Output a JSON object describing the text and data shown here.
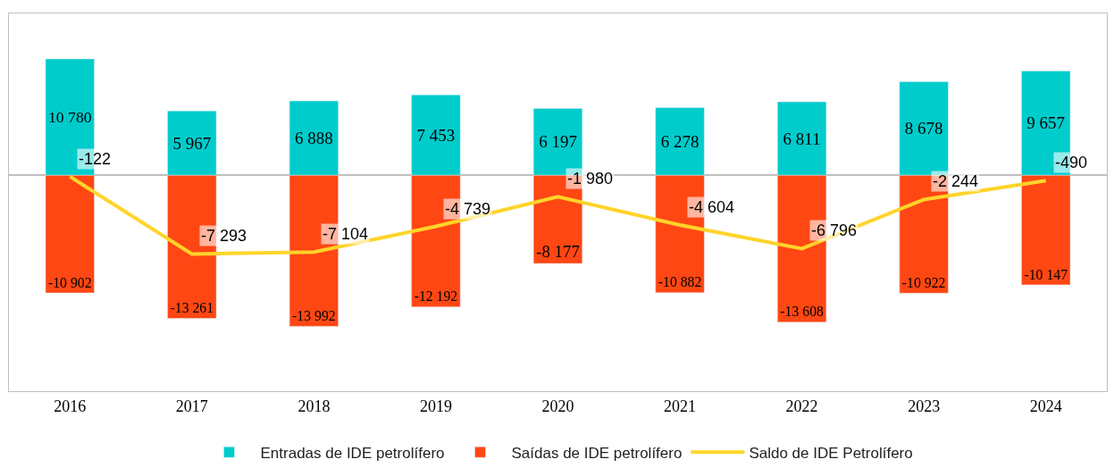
{
  "chart_data": {
    "type": "bar",
    "stacked": true,
    "categories": [
      "2016",
      "2017",
      "2018",
      "2019",
      "2020",
      "2021",
      "2022",
      "2023",
      "2024"
    ],
    "series": [
      {
        "name": "Entradas de IDE petrolífero",
        "color": "#00cccc",
        "values": [
          10780,
          5967,
          6888,
          7453,
          6197,
          6278,
          6811,
          8678,
          9657
        ]
      },
      {
        "name": "Saídas de IDE petrolífero",
        "color": "#ff4713",
        "values": [
          -10902,
          -13261,
          -13992,
          -12192,
          -8177,
          -10882,
          -13608,
          -10922,
          -10147
        ]
      },
      {
        "name": "Saldo de IDE Petrolífero",
        "type": "line",
        "color": "#ffd42a",
        "values": [
          -122,
          -7293,
          -7104,
          -4739,
          -1980,
          -4604,
          -6796,
          -2244,
          -490
        ]
      }
    ],
    "ylim": [
      -20000,
      15000
    ],
    "data_labels": true,
    "legend": "bottom",
    "tick_labels": "x",
    "marker": "none"
  }
}
